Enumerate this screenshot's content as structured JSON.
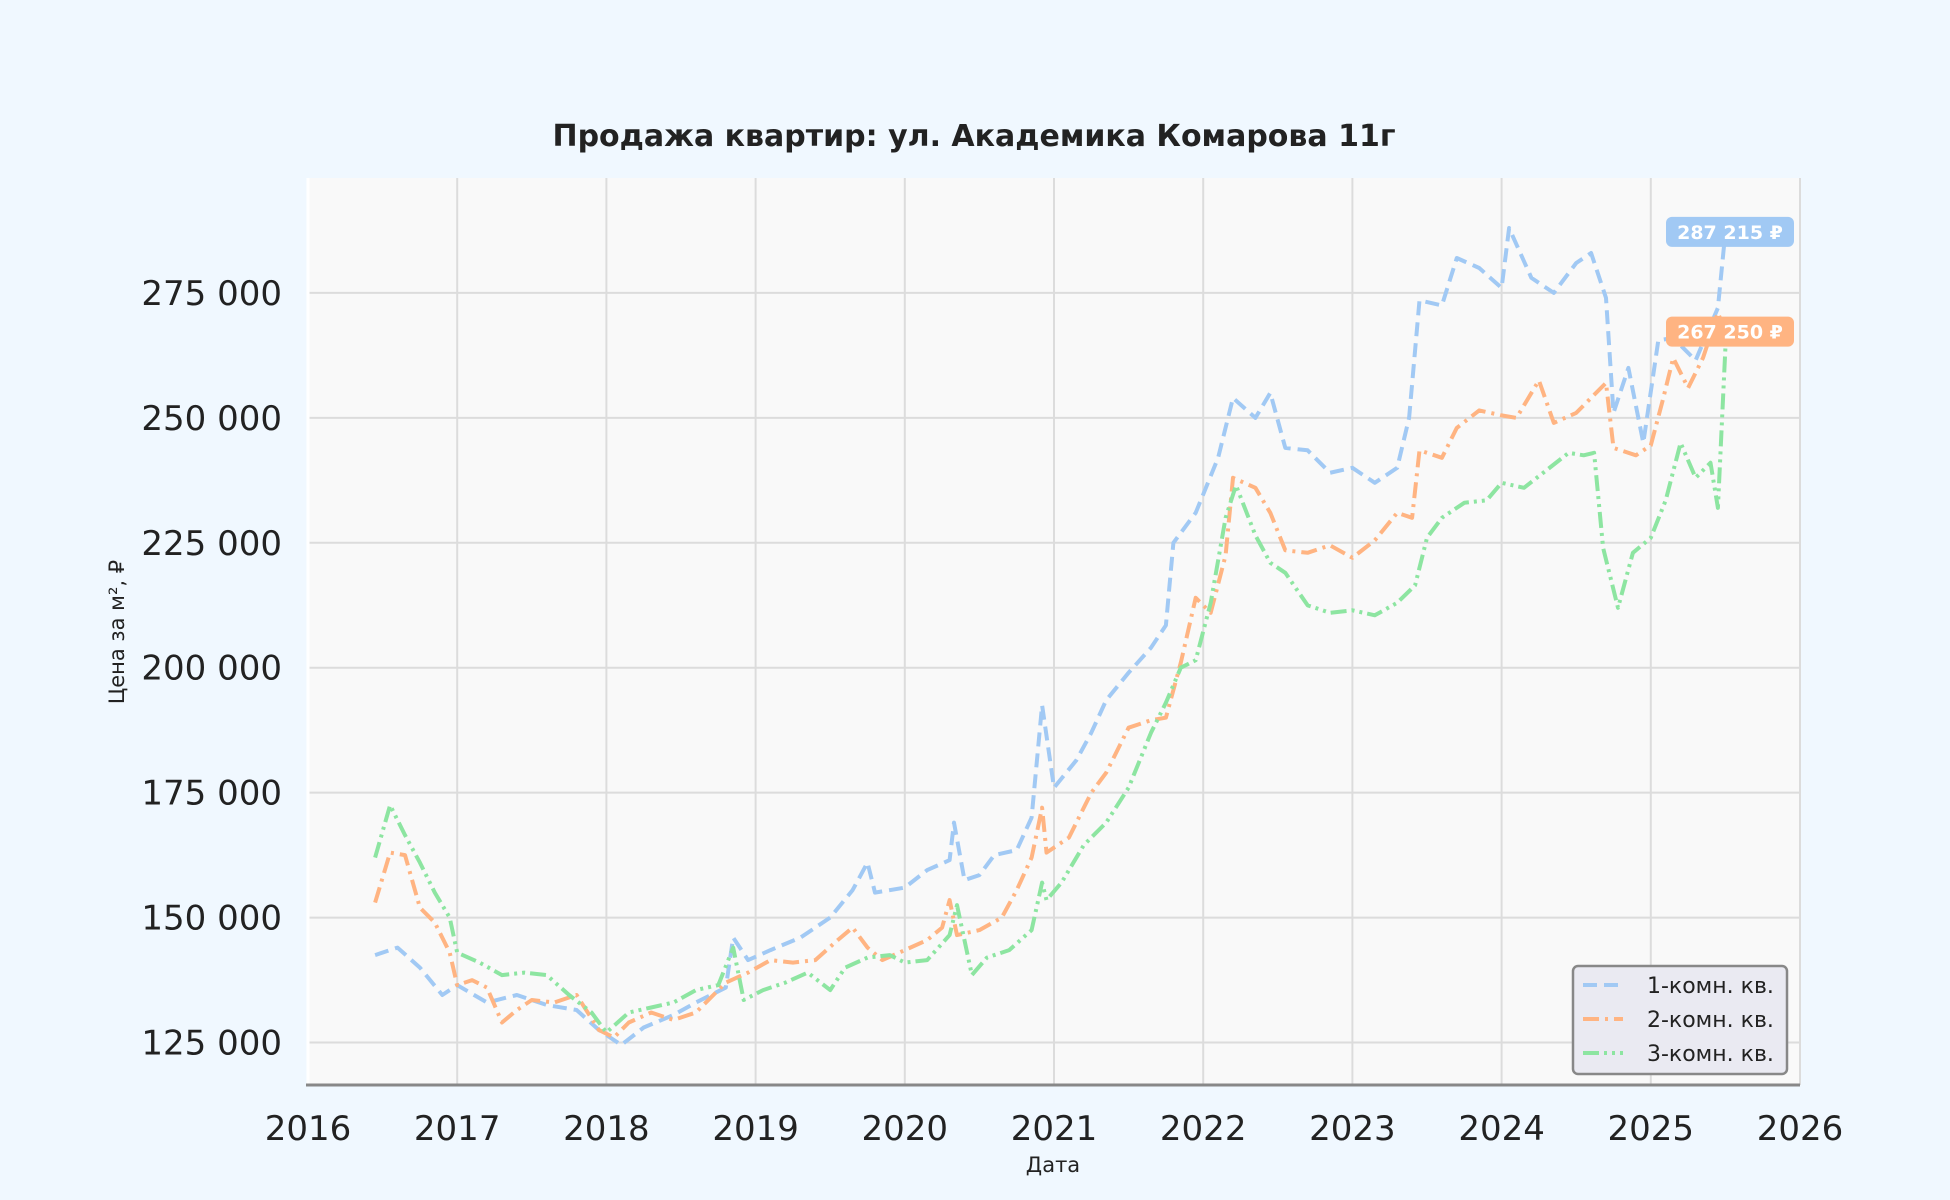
{
  "chart_data": {
    "type": "line",
    "title": "Продажа квартир: ул. Академика Комарова 11г",
    "xlabel": "Дата",
    "ylabel": "Цена за м², ₽",
    "xlim": [
      2016,
      2026
    ],
    "ylim": [
      116500,
      298000
    ],
    "x_ticks": [
      "2016",
      "2017",
      "2018",
      "2019",
      "2020",
      "2021",
      "2022",
      "2023",
      "2024",
      "2025",
      "2026"
    ],
    "y_ticks": [
      {
        "value": 125000,
        "label": "125 000"
      },
      {
        "value": 150000,
        "label": "150 000"
      },
      {
        "value": 175000,
        "label": "175 000"
      },
      {
        "value": 200000,
        "label": "200 000"
      },
      {
        "value": 225000,
        "label": "225 000"
      },
      {
        "value": 250000,
        "label": "250 000"
      },
      {
        "value": 275000,
        "label": "275 000"
      }
    ],
    "grid": true,
    "legend_position": "bottom-right",
    "series": [
      {
        "name": "1-комн. кв.",
        "color": "#a1c9f4",
        "dash": "dashed",
        "last_label": "287 215 ₽",
        "points": [
          [
            2016.45,
            142500
          ],
          [
            2016.6,
            144000
          ],
          [
            2016.75,
            140000
          ],
          [
            2016.9,
            134500
          ],
          [
            2017.0,
            136500
          ],
          [
            2017.2,
            133000
          ],
          [
            2017.4,
            134500
          ],
          [
            2017.6,
            132500
          ],
          [
            2017.8,
            131500
          ],
          [
            2017.95,
            127500
          ],
          [
            2018.1,
            124500
          ],
          [
            2018.25,
            128000
          ],
          [
            2018.45,
            130500
          ],
          [
            2018.6,
            133000
          ],
          [
            2018.8,
            136000
          ],
          [
            2018.85,
            146000
          ],
          [
            2018.95,
            141500
          ],
          [
            2019.1,
            143500
          ],
          [
            2019.3,
            146000
          ],
          [
            2019.5,
            150000
          ],
          [
            2019.65,
            155500
          ],
          [
            2019.75,
            161000
          ],
          [
            2019.8,
            155000
          ],
          [
            2020.0,
            156000
          ],
          [
            2020.15,
            159500
          ],
          [
            2020.3,
            161500
          ],
          [
            2020.33,
            169000
          ],
          [
            2020.4,
            157500
          ],
          [
            2020.5,
            158500
          ],
          [
            2020.6,
            162500
          ],
          [
            2020.75,
            163500
          ],
          [
            2020.85,
            170000
          ],
          [
            2020.92,
            192500
          ],
          [
            2021.0,
            176000
          ],
          [
            2021.15,
            181500
          ],
          [
            2021.25,
            187000
          ],
          [
            2021.35,
            193500
          ],
          [
            2021.5,
            199000
          ],
          [
            2021.65,
            204000
          ],
          [
            2021.75,
            208500
          ],
          [
            2021.8,
            225000
          ],
          [
            2021.95,
            231000
          ],
          [
            2022.1,
            242000
          ],
          [
            2022.2,
            254000
          ],
          [
            2022.35,
            250000
          ],
          [
            2022.45,
            255000
          ],
          [
            2022.55,
            244000
          ],
          [
            2022.7,
            243500
          ],
          [
            2022.85,
            239000
          ],
          [
            2023.0,
            240000
          ],
          [
            2023.15,
            237000
          ],
          [
            2023.3,
            240000
          ],
          [
            2023.38,
            250000
          ],
          [
            2023.45,
            273500
          ],
          [
            2023.6,
            272500
          ],
          [
            2023.7,
            282000
          ],
          [
            2023.85,
            280000
          ],
          [
            2024.0,
            276000
          ],
          [
            2024.05,
            288000
          ],
          [
            2024.2,
            278000
          ],
          [
            2024.35,
            275000
          ],
          [
            2024.5,
            281000
          ],
          [
            2024.6,
            283000
          ],
          [
            2024.7,
            274000
          ],
          [
            2024.75,
            251000
          ],
          [
            2024.85,
            260000
          ],
          [
            2024.95,
            245000
          ],
          [
            2025.05,
            265500
          ],
          [
            2025.15,
            266000
          ],
          [
            2025.3,
            261500
          ],
          [
            2025.45,
            272000
          ],
          [
            2025.5,
            287215
          ]
        ]
      },
      {
        "name": "2-комн. кв.",
        "color": "#ffb482",
        "dash": "dash-dot",
        "last_label": "267 250 ₽",
        "points": [
          [
            2016.45,
            153000
          ],
          [
            2016.55,
            163000
          ],
          [
            2016.65,
            162500
          ],
          [
            2016.75,
            152000
          ],
          [
            2016.85,
            149000
          ],
          [
            2016.95,
            143000
          ],
          [
            2017.0,
            136500
          ],
          [
            2017.1,
            137500
          ],
          [
            2017.2,
            136000
          ],
          [
            2017.3,
            129000
          ],
          [
            2017.4,
            131500
          ],
          [
            2017.5,
            133500
          ],
          [
            2017.65,
            133000
          ],
          [
            2017.8,
            134500
          ],
          [
            2017.95,
            127500
          ],
          [
            2018.05,
            126000
          ],
          [
            2018.15,
            129000
          ],
          [
            2018.3,
            131000
          ],
          [
            2018.45,
            129500
          ],
          [
            2018.6,
            131000
          ],
          [
            2018.8,
            137000
          ],
          [
            2018.95,
            139000
          ],
          [
            2019.1,
            141500
          ],
          [
            2019.25,
            141000
          ],
          [
            2019.4,
            141500
          ],
          [
            2019.55,
            145500
          ],
          [
            2019.65,
            148000
          ],
          [
            2019.75,
            144000
          ],
          [
            2019.85,
            141500
          ],
          [
            2020.0,
            143500
          ],
          [
            2020.15,
            145500
          ],
          [
            2020.25,
            148000
          ],
          [
            2020.3,
            153500
          ],
          [
            2020.35,
            146500
          ],
          [
            2020.5,
            147500
          ],
          [
            2020.65,
            150000
          ],
          [
            2020.75,
            155500
          ],
          [
            2020.85,
            162000
          ],
          [
            2020.92,
            172000
          ],
          [
            2020.95,
            163000
          ],
          [
            2021.1,
            166000
          ],
          [
            2021.25,
            175000
          ],
          [
            2021.35,
            179000
          ],
          [
            2021.5,
            188000
          ],
          [
            2021.65,
            189500
          ],
          [
            2021.75,
            190000
          ],
          [
            2021.85,
            201000
          ],
          [
            2021.95,
            214000
          ],
          [
            2022.05,
            211000
          ],
          [
            2022.15,
            222500
          ],
          [
            2022.2,
            238000
          ],
          [
            2022.35,
            236000
          ],
          [
            2022.45,
            231000
          ],
          [
            2022.55,
            223500
          ],
          [
            2022.7,
            223000
          ],
          [
            2022.85,
            224500
          ],
          [
            2023.0,
            222000
          ],
          [
            2023.15,
            225500
          ],
          [
            2023.3,
            231000
          ],
          [
            2023.4,
            230000
          ],
          [
            2023.45,
            243500
          ],
          [
            2023.6,
            242000
          ],
          [
            2023.7,
            248000
          ],
          [
            2023.85,
            251500
          ],
          [
            2024.0,
            250500
          ],
          [
            2024.1,
            250000
          ],
          [
            2024.25,
            257500
          ],
          [
            2024.35,
            249000
          ],
          [
            2024.5,
            251000
          ],
          [
            2024.6,
            254000
          ],
          [
            2024.7,
            257000
          ],
          [
            2024.75,
            244000
          ],
          [
            2024.9,
            242500
          ],
          [
            2025.0,
            244500
          ],
          [
            2025.08,
            253500
          ],
          [
            2025.15,
            262000
          ],
          [
            2025.25,
            256000
          ],
          [
            2025.35,
            262000
          ],
          [
            2025.45,
            271000
          ],
          [
            2025.5,
            267250
          ]
        ]
      },
      {
        "name": "3-комн. кв.",
        "color": "#8de5a1",
        "dash": "dash-dot-dot",
        "last_label": "",
        "points": [
          [
            2016.45,
            162000
          ],
          [
            2016.55,
            172500
          ],
          [
            2016.65,
            166500
          ],
          [
            2016.75,
            161000
          ],
          [
            2016.85,
            155000
          ],
          [
            2016.95,
            150000
          ],
          [
            2017.0,
            143000
          ],
          [
            2017.15,
            141000
          ],
          [
            2017.3,
            138500
          ],
          [
            2017.45,
            139000
          ],
          [
            2017.6,
            138500
          ],
          [
            2017.75,
            134500
          ],
          [
            2017.9,
            131000
          ],
          [
            2018.0,
            127000
          ],
          [
            2018.15,
            131000
          ],
          [
            2018.3,
            132000
          ],
          [
            2018.45,
            133000
          ],
          [
            2018.6,
            135500
          ],
          [
            2018.75,
            136500
          ],
          [
            2018.85,
            144000
          ],
          [
            2018.92,
            133500
          ],
          [
            2019.05,
            135500
          ],
          [
            2019.2,
            137000
          ],
          [
            2019.35,
            139000
          ],
          [
            2019.5,
            135500
          ],
          [
            2019.6,
            140000
          ],
          [
            2019.75,
            142000
          ],
          [
            2019.9,
            142500
          ],
          [
            2020.0,
            141000
          ],
          [
            2020.15,
            141500
          ],
          [
            2020.3,
            146500
          ],
          [
            2020.35,
            152500
          ],
          [
            2020.45,
            138500
          ],
          [
            2020.55,
            142000
          ],
          [
            2020.7,
            143500
          ],
          [
            2020.85,
            147500
          ],
          [
            2020.92,
            157000
          ],
          [
            2020.95,
            153500
          ],
          [
            2021.05,
            157000
          ],
          [
            2021.2,
            164500
          ],
          [
            2021.35,
            169000
          ],
          [
            2021.5,
            176000
          ],
          [
            2021.65,
            187000
          ],
          [
            2021.75,
            193000
          ],
          [
            2021.85,
            200000
          ],
          [
            2021.95,
            201500
          ],
          [
            2022.05,
            213000
          ],
          [
            2022.15,
            230000
          ],
          [
            2022.22,
            236500
          ],
          [
            2022.35,
            226500
          ],
          [
            2022.45,
            221000
          ],
          [
            2022.55,
            219000
          ],
          [
            2022.7,
            212500
          ],
          [
            2022.85,
            211000
          ],
          [
            2023.0,
            211500
          ],
          [
            2023.15,
            210500
          ],
          [
            2023.3,
            213000
          ],
          [
            2023.42,
            216500
          ],
          [
            2023.5,
            226000
          ],
          [
            2023.6,
            230000
          ],
          [
            2023.75,
            233000
          ],
          [
            2023.9,
            233500
          ],
          [
            2024.0,
            237000
          ],
          [
            2024.15,
            236000
          ],
          [
            2024.3,
            239500
          ],
          [
            2024.45,
            243000
          ],
          [
            2024.55,
            242500
          ],
          [
            2024.62,
            243000
          ],
          [
            2024.68,
            224000
          ],
          [
            2024.78,
            212000
          ],
          [
            2024.88,
            223000
          ],
          [
            2025.0,
            226000
          ],
          [
            2025.1,
            233500
          ],
          [
            2025.2,
            245000
          ],
          [
            2025.3,
            238000
          ],
          [
            2025.4,
            241000
          ],
          [
            2025.45,
            232000
          ],
          [
            2025.5,
            264000
          ]
        ]
      }
    ]
  }
}
